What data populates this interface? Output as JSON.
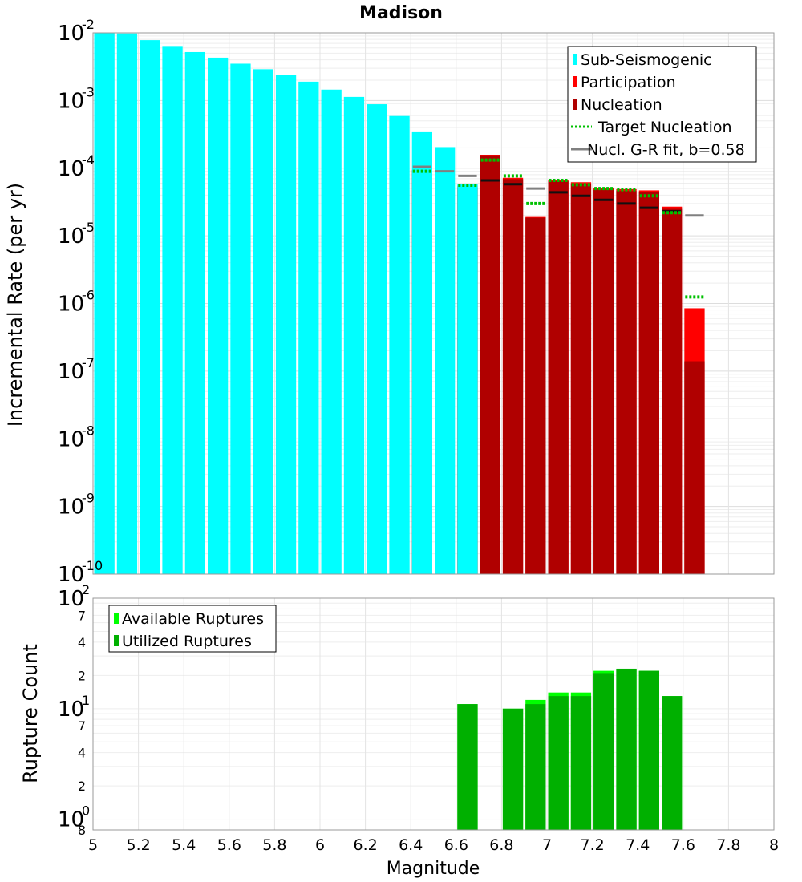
{
  "chart_data": [
    {
      "type": "bar",
      "title": "Madison",
      "ylabel": "Incremental Rate (per yr)",
      "xlabel": "",
      "y_scale": "log",
      "xlim": [
        5,
        8
      ],
      "ylim": [
        1e-10,
        0.01
      ],
      "grid": true,
      "legend_position": "top-right",
      "y_ticks": [
        {
          "base": "10",
          "exp": "-2"
        },
        {
          "base": "10",
          "exp": "-3"
        },
        {
          "base": "10",
          "exp": "-4"
        },
        {
          "base": "10",
          "exp": "-5"
        },
        {
          "base": "10",
          "exp": "-6"
        },
        {
          "base": "10",
          "exp": "-7"
        },
        {
          "base": "10",
          "exp": "-8"
        },
        {
          "base": "10",
          "exp": "-9"
        },
        {
          "base": "10",
          "exp": "-10"
        }
      ],
      "legend": [
        {
          "label": "Sub-Seismogenic",
          "kind": "box",
          "color": "#00ffff"
        },
        {
          "label": "Participation",
          "kind": "box",
          "color": "#ff0000"
        },
        {
          "label": "Nucleation",
          "kind": "box",
          "color": "#b00000"
        },
        {
          "label": "Target Nucleation",
          "kind": "dotted",
          "color": "#00c000"
        },
        {
          "label": "Nucl. G-R fit, b=0.58",
          "kind": "line",
          "color": "#808080"
        }
      ],
      "series": [
        {
          "key": "sub_seismogenic",
          "color": "#00ffff",
          "x": [
            5.05,
            5.15,
            5.25,
            5.35,
            5.45,
            5.55,
            5.65,
            5.75,
            5.85,
            5.95,
            6.05,
            6.15,
            6.25,
            6.35,
            6.45,
            6.55,
            6.65
          ],
          "values": [
            0.01,
            0.0098,
            0.0078,
            0.0064,
            0.0052,
            0.0043,
            0.0035,
            0.0029,
            0.0024,
            0.0019,
            0.00145,
            0.00113,
            0.00088,
            0.00059,
            0.00034,
            0.000205,
            5.8e-05
          ]
        },
        {
          "key": "participation",
          "color": "#ff0000",
          "x": [
            6.45,
            6.65,
            6.75,
            6.85,
            6.95,
            7.05,
            7.15,
            7.25,
            7.35,
            7.45,
            7.55,
            7.65
          ],
          "values": [
            9.5e-05,
            5.5e-05,
            0.000158,
            7.2e-05,
            1.9e-05,
            6.6e-05,
            6.2e-05,
            5.1e-05,
            4.9e-05,
            4.7e-05,
            2.7e-05,
            8.5e-07
          ]
        },
        {
          "key": "nucleation",
          "color": "#b00000",
          "x": [
            6.45,
            6.65,
            6.75,
            6.85,
            6.95,
            7.05,
            7.15,
            7.25,
            7.35,
            7.45,
            7.55,
            7.65
          ],
          "values": [
            9.3e-05,
            5.2e-05,
            0.000155,
            6.9e-05,
            1.85e-05,
            6.4e-05,
            5.9e-05,
            4.8e-05,
            4.6e-05,
            4.4e-05,
            2.5e-05,
            1.4e-07
          ]
        },
        {
          "key": "target_nucleation",
          "color": "#00c000",
          "x": [
            6.45,
            6.65,
            6.75,
            6.85,
            6.95,
            7.05,
            7.15,
            7.25,
            7.35,
            7.45,
            7.55,
            7.65
          ],
          "values": [
            9e-05,
            5.6e-05,
            0.000132,
            7.7e-05,
            3e-05,
            6.6e-05,
            5.7e-05,
            5e-05,
            4.8e-05,
            3.9e-05,
            2.2e-05,
            1.25e-06
          ]
        },
        {
          "key": "gr_fit",
          "color": "#808080",
          "x": [
            6.45,
            6.55,
            6.65,
            6.75,
            6.85,
            6.95,
            7.05,
            7.15,
            7.25,
            7.35,
            7.45,
            7.55,
            7.65
          ],
          "values": [
            0.000105,
            9e-05,
            7.7e-05,
            6.6e-05,
            5.8e-05,
            5e-05,
            4.4e-05,
            3.9e-05,
            3.4e-05,
            3e-05,
            2.6e-05,
            2.3e-05,
            2e-05
          ]
        }
      ]
    },
    {
      "type": "bar",
      "title": "",
      "ylabel": "Rupture Count",
      "xlabel": "Magnitude",
      "y_scale": "log",
      "xlim": [
        5,
        8
      ],
      "ylim": [
        0.8,
        100
      ],
      "grid": true,
      "legend_position": "top-left",
      "x_ticks": [
        "5",
        "5.2",
        "5.4",
        "5.6",
        "5.8",
        "6",
        "6.2",
        "6.4",
        "6.6",
        "6.8",
        "7",
        "7.2",
        "7.4",
        "7.6",
        "7.8",
        "8"
      ],
      "y_ticks": [
        {
          "value": 100,
          "base": "10",
          "exp": "2"
        },
        {
          "value": 70,
          "label": "7"
        },
        {
          "value": 40,
          "label": "4"
        },
        {
          "value": 20,
          "label": "2"
        },
        {
          "value": 10,
          "base": "10",
          "exp": "1"
        },
        {
          "value": 7,
          "label": "7"
        },
        {
          "value": 4,
          "label": "4"
        },
        {
          "value": 2,
          "label": "2"
        },
        {
          "value": 1,
          "base": "10",
          "exp": "0"
        },
        {
          "value": 0.8,
          "label": "8"
        }
      ],
      "legend": [
        {
          "label": "Available Ruptures",
          "kind": "box",
          "color": "#00ff00"
        },
        {
          "label": "Utilized Ruptures",
          "kind": "box",
          "color": "#00b000"
        }
      ],
      "series": [
        {
          "key": "available",
          "color": "#00ff00",
          "x": [
            6.65,
            6.85,
            6.95,
            7.05,
            7.15,
            7.25,
            7.35,
            7.45,
            7.55
          ],
          "values": [
            11,
            10,
            12,
            14,
            14,
            22,
            23,
            22,
            13
          ]
        },
        {
          "key": "utilized",
          "color": "#00b000",
          "x": [
            6.65,
            6.85,
            6.95,
            7.05,
            7.15,
            7.25,
            7.35,
            7.45,
            7.55
          ],
          "values": [
            11,
            10,
            11,
            13,
            13,
            21,
            23,
            22,
            13
          ]
        }
      ]
    }
  ]
}
